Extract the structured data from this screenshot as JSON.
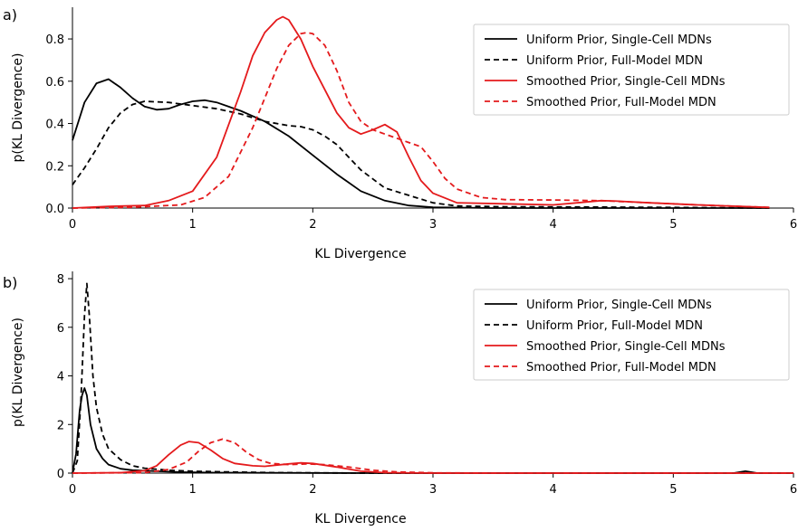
{
  "chart_data": [
    {
      "panel": "a)",
      "type": "line",
      "xlabel": "KL Divergence",
      "ylabel": "p(KL Divergence)",
      "xlim": [
        0,
        6
      ],
      "ylim": [
        0,
        0.95
      ],
      "xticks": [
        "0",
        "1",
        "2",
        "3",
        "4",
        "5",
        "6"
      ],
      "yticks": [
        "0.0",
        "0.2",
        "0.4",
        "0.6",
        "0.8"
      ],
      "ytick_values": [
        0,
        0.2,
        0.4,
        0.6,
        0.8
      ],
      "legend_position": "top-right",
      "grid": false,
      "series": [
        {
          "name": "Uniform Prior, Single-Cell MDNs",
          "color": "#000000",
          "dash": "solid",
          "points": [
            [
              0,
              0.32
            ],
            [
              0.1,
              0.5
            ],
            [
              0.2,
              0.59
            ],
            [
              0.3,
              0.61
            ],
            [
              0.4,
              0.57
            ],
            [
              0.5,
              0.52
            ],
            [
              0.6,
              0.48
            ],
            [
              0.7,
              0.465
            ],
            [
              0.8,
              0.47
            ],
            [
              0.9,
              0.49
            ],
            [
              1.0,
              0.505
            ],
            [
              1.1,
              0.51
            ],
            [
              1.2,
              0.5
            ],
            [
              1.4,
              0.46
            ],
            [
              1.6,
              0.41
            ],
            [
              1.8,
              0.34
            ],
            [
              2.0,
              0.25
            ],
            [
              2.2,
              0.16
            ],
            [
              2.4,
              0.08
            ],
            [
              2.6,
              0.035
            ],
            [
              2.8,
              0.012
            ],
            [
              3.0,
              0.004
            ],
            [
              3.5,
              0.0
            ],
            [
              5.8,
              0.0
            ]
          ]
        },
        {
          "name": "Uniform Prior, Full-Model MDN",
          "color": "#000000",
          "dash": "dashed",
          "points": [
            [
              0,
              0.11
            ],
            [
              0.1,
              0.19
            ],
            [
              0.2,
              0.28
            ],
            [
              0.3,
              0.38
            ],
            [
              0.4,
              0.45
            ],
            [
              0.5,
              0.49
            ],
            [
              0.6,
              0.505
            ],
            [
              0.8,
              0.5
            ],
            [
              1.0,
              0.485
            ],
            [
              1.2,
              0.47
            ],
            [
              1.4,
              0.445
            ],
            [
              1.6,
              0.41
            ],
            [
              1.8,
              0.39
            ],
            [
              1.9,
              0.385
            ],
            [
              2.0,
              0.37
            ],
            [
              2.1,
              0.34
            ],
            [
              2.2,
              0.3
            ],
            [
              2.4,
              0.18
            ],
            [
              2.6,
              0.095
            ],
            [
              2.8,
              0.06
            ],
            [
              3.0,
              0.025
            ],
            [
              3.2,
              0.01
            ],
            [
              3.6,
              0.006
            ],
            [
              4.2,
              0.005
            ],
            [
              5.0,
              0.003
            ],
            [
              5.8,
              0.0
            ]
          ]
        },
        {
          "name": "Smoothed Prior, Single-Cell MDNs",
          "color": "#e41a1c",
          "dash": "solid",
          "points": [
            [
              0,
              0.0
            ],
            [
              0.3,
              0.008
            ],
            [
              0.6,
              0.012
            ],
            [
              0.8,
              0.035
            ],
            [
              1.0,
              0.08
            ],
            [
              1.2,
              0.24
            ],
            [
              1.4,
              0.55
            ],
            [
              1.5,
              0.72
            ],
            [
              1.6,
              0.83
            ],
            [
              1.7,
              0.89
            ],
            [
              1.75,
              0.905
            ],
            [
              1.8,
              0.89
            ],
            [
              1.9,
              0.8
            ],
            [
              2.0,
              0.67
            ],
            [
              2.2,
              0.45
            ],
            [
              2.3,
              0.38
            ],
            [
              2.4,
              0.35
            ],
            [
              2.5,
              0.37
            ],
            [
              2.6,
              0.395
            ],
            [
              2.7,
              0.36
            ],
            [
              2.8,
              0.24
            ],
            [
              2.9,
              0.13
            ],
            [
              3.0,
              0.07
            ],
            [
              3.2,
              0.025
            ],
            [
              3.6,
              0.02
            ],
            [
              4.0,
              0.015
            ],
            [
              4.2,
              0.025
            ],
            [
              4.4,
              0.035
            ],
            [
              4.5,
              0.034
            ],
            [
              4.8,
              0.025
            ],
            [
              5.2,
              0.015
            ],
            [
              5.8,
              0.003
            ]
          ]
        },
        {
          "name": "Smoothed Prior, Full-Model MDN",
          "color": "#e41a1c",
          "dash": "dashed",
          "points": [
            [
              0,
              0.0
            ],
            [
              0.5,
              0.004
            ],
            [
              0.9,
              0.015
            ],
            [
              1.1,
              0.05
            ],
            [
              1.3,
              0.15
            ],
            [
              1.5,
              0.38
            ],
            [
              1.6,
              0.52
            ],
            [
              1.7,
              0.66
            ],
            [
              1.8,
              0.77
            ],
            [
              1.9,
              0.825
            ],
            [
              1.95,
              0.83
            ],
            [
              2.0,
              0.825
            ],
            [
              2.1,
              0.77
            ],
            [
              2.2,
              0.65
            ],
            [
              2.3,
              0.5
            ],
            [
              2.4,
              0.41
            ],
            [
              2.5,
              0.37
            ],
            [
              2.6,
              0.35
            ],
            [
              2.7,
              0.33
            ],
            [
              2.8,
              0.31
            ],
            [
              2.9,
              0.29
            ],
            [
              3.0,
              0.22
            ],
            [
              3.1,
              0.14
            ],
            [
              3.2,
              0.09
            ],
            [
              3.4,
              0.05
            ],
            [
              3.6,
              0.04
            ],
            [
              4.0,
              0.038
            ],
            [
              4.4,
              0.035
            ],
            [
              4.8,
              0.025
            ],
            [
              5.2,
              0.015
            ],
            [
              5.8,
              0.003
            ]
          ]
        }
      ]
    },
    {
      "panel": "b)",
      "type": "line",
      "xlabel": "KL Divergence",
      "ylabel": "p(KL Divergence)",
      "xlim": [
        0,
        6
      ],
      "ylim": [
        0,
        8.3
      ],
      "xticks": [
        "0",
        "1",
        "2",
        "3",
        "4",
        "5",
        "6"
      ],
      "yticks": [
        "0",
        "2",
        "4",
        "6",
        "8"
      ],
      "ytick_values": [
        0,
        2,
        4,
        6,
        8
      ],
      "legend_position": "top-right",
      "grid": false,
      "series": [
        {
          "name": "Uniform Prior, Single-Cell MDNs",
          "color": "#000000",
          "dash": "solid",
          "points": [
            [
              0,
              0.0
            ],
            [
              0.03,
              0.8
            ],
            [
              0.06,
              2.6
            ],
            [
              0.08,
              3.2
            ],
            [
              0.1,
              3.5
            ],
            [
              0.12,
              3.2
            ],
            [
              0.15,
              2.0
            ],
            [
              0.2,
              1.0
            ],
            [
              0.25,
              0.6
            ],
            [
              0.3,
              0.35
            ],
            [
              0.4,
              0.18
            ],
            [
              0.5,
              0.12
            ],
            [
              0.7,
              0.08
            ],
            [
              0.9,
              0.04
            ],
            [
              1.2,
              0.02
            ],
            [
              1.6,
              0.01
            ],
            [
              2.5,
              0.0
            ],
            [
              5.5,
              0.0
            ],
            [
              5.6,
              0.08
            ],
            [
              5.7,
              0.0
            ],
            [
              6.0,
              0.0
            ]
          ]
        },
        {
          "name": "Uniform Prior, Full-Model MDN",
          "color": "#000000",
          "dash": "dashed",
          "points": [
            [
              0,
              0.0
            ],
            [
              0.04,
              0.5
            ],
            [
              0.07,
              3.0
            ],
            [
              0.1,
              6.5
            ],
            [
              0.12,
              7.8
            ],
            [
              0.14,
              6.5
            ],
            [
              0.17,
              4.0
            ],
            [
              0.2,
              2.7
            ],
            [
              0.25,
              1.6
            ],
            [
              0.3,
              1.0
            ],
            [
              0.4,
              0.55
            ],
            [
              0.5,
              0.3
            ],
            [
              0.6,
              0.2
            ],
            [
              0.8,
              0.12
            ],
            [
              1.0,
              0.08
            ],
            [
              1.3,
              0.05
            ],
            [
              1.7,
              0.02
            ],
            [
              2.5,
              0.0
            ],
            [
              6.0,
              0.0
            ]
          ]
        },
        {
          "name": "Smoothed Prior, Single-Cell MDNs",
          "color": "#e41a1c",
          "dash": "solid",
          "points": [
            [
              0,
              0.0
            ],
            [
              0.4,
              0.02
            ],
            [
              0.6,
              0.1
            ],
            [
              0.7,
              0.3
            ],
            [
              0.8,
              0.75
            ],
            [
              0.9,
              1.15
            ],
            [
              0.97,
              1.3
            ],
            [
              1.05,
              1.25
            ],
            [
              1.15,
              0.95
            ],
            [
              1.25,
              0.6
            ],
            [
              1.35,
              0.4
            ],
            [
              1.5,
              0.3
            ],
            [
              1.6,
              0.28
            ],
            [
              1.8,
              0.38
            ],
            [
              1.9,
              0.42
            ],
            [
              2.0,
              0.4
            ],
            [
              2.2,
              0.25
            ],
            [
              2.4,
              0.08
            ],
            [
              2.6,
              0.02
            ],
            [
              3.0,
              0.0
            ],
            [
              6.0,
              0.0
            ]
          ]
        },
        {
          "name": "Smoothed Prior, Full-Model MDN",
          "color": "#e41a1c",
          "dash": "dashed",
          "points": [
            [
              0,
              0.0
            ],
            [
              0.6,
              0.02
            ],
            [
              0.8,
              0.15
            ],
            [
              0.95,
              0.45
            ],
            [
              1.05,
              0.9
            ],
            [
              1.15,
              1.25
            ],
            [
              1.25,
              1.4
            ],
            [
              1.35,
              1.25
            ],
            [
              1.45,
              0.85
            ],
            [
              1.55,
              0.55
            ],
            [
              1.65,
              0.4
            ],
            [
              1.8,
              0.35
            ],
            [
              1.95,
              0.38
            ],
            [
              2.1,
              0.35
            ],
            [
              2.3,
              0.25
            ],
            [
              2.5,
              0.12
            ],
            [
              2.7,
              0.05
            ],
            [
              3.0,
              0.01
            ],
            [
              3.5,
              0.0
            ],
            [
              6.0,
              0.0
            ]
          ]
        }
      ]
    }
  ]
}
